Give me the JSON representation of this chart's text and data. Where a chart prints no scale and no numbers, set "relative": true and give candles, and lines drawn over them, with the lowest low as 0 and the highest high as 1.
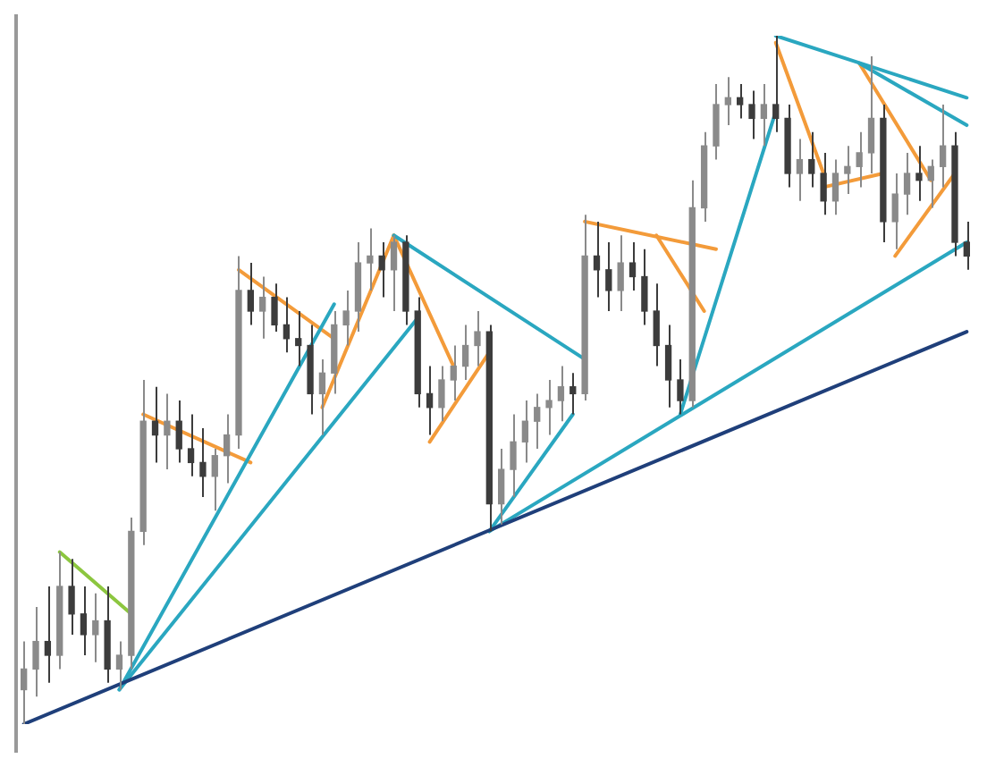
{
  "chart_data": {
    "type": "candlestick",
    "relative": true,
    "categories": [
      null,
      null,
      null,
      null,
      null,
      null,
      null,
      null,
      null,
      null,
      null,
      null,
      null,
      null,
      null,
      null,
      null,
      null,
      null,
      null,
      null,
      null,
      null,
      null,
      null,
      null,
      null,
      null,
      null,
      null,
      null,
      null,
      null,
      null,
      null,
      null,
      null,
      null,
      null,
      null,
      null,
      null,
      null,
      null,
      null,
      null,
      null,
      null,
      null,
      null,
      null,
      null,
      null,
      null,
      null,
      null,
      null,
      null,
      null,
      null,
      null,
      null,
      null,
      null,
      null,
      null,
      null,
      null,
      null,
      null,
      null,
      null,
      null,
      null,
      null,
      null,
      null,
      null,
      null,
      null
    ],
    "colors": [
      "#8a8a8a",
      "#8a8a8a",
      "#3c3c3c",
      "#8a8a8a",
      "#3c3c3c",
      "#3c3c3c",
      "#8a8a8a",
      "#3c3c3c",
      "#8a8a8a",
      "#8a8a8a",
      "#8a8a8a",
      "#3c3c3c",
      "#8a8a8a",
      "#3c3c3c",
      "#3c3c3c",
      "#3c3c3c",
      "#8a8a8a",
      "#8a8a8a",
      "#8a8a8a",
      "#3c3c3c",
      "#8a8a8a",
      "#3c3c3c",
      "#3c3c3c",
      "#3c3c3c",
      "#3c3c3c",
      "#8a8a8a",
      "#8a8a8a",
      "#8a8a8a",
      "#8a8a8a",
      "#8a8a8a",
      "#3c3c3c",
      "#8a8a8a",
      "#3c3c3c",
      "#3c3c3c",
      "#3c3c3c",
      "#8a8a8a",
      "#8a8a8a",
      "#8a8a8a",
      "#8a8a8a",
      "#3c3c3c",
      "#8a8a8a",
      "#8a8a8a",
      "#8a8a8a",
      "#8a8a8a",
      "#8a8a8a",
      "#8a8a8a",
      "#3c3c3c",
      "#8a8a8a",
      "#3c3c3c",
      "#3c3c3c",
      "#8a8a8a",
      "#3c3c3c",
      "#3c3c3c",
      "#3c3c3c",
      "#3c3c3c",
      "#3c3c3c",
      "#8a8a8a",
      "#8a8a8a",
      "#8a8a8a",
      "#8a8a8a",
      "#3c3c3c",
      "#3c3c3c",
      "#8a8a8a",
      "#3c3c3c",
      "#3c3c3c",
      "#8a8a8a",
      "#3c3c3c",
      "#3c3c3c",
      "#8a8a8a",
      "#8a8a8a",
      "#8a8a8a",
      "#8a8a8a",
      "#3c3c3c",
      "#8a8a8a",
      "#8a8a8a",
      "#3c3c3c",
      "#8a8a8a",
      "#8a8a8a",
      "#3c3c3c",
      "#3c3c3c"
    ],
    "ohlc": [
      [
        0.05,
        0.12,
        0,
        0.08
      ],
      [
        0.08,
        0.17,
        0.04,
        0.12
      ],
      [
        0.12,
        0.2,
        0.06,
        0.1
      ],
      [
        0.1,
        0.25,
        0.08,
        0.2
      ],
      [
        0.2,
        0.24,
        0.13,
        0.16
      ],
      [
        0.16,
        0.2,
        0.1,
        0.13
      ],
      [
        0.13,
        0.19,
        0.09,
        0.15
      ],
      [
        0.15,
        0.2,
        0.06,
        0.08
      ],
      [
        0.08,
        0.12,
        0.05,
        0.1
      ],
      [
        0.1,
        0.3,
        0.08,
        0.28
      ],
      [
        0.28,
        0.5,
        0.26,
        0.44
      ],
      [
        0.44,
        0.49,
        0.38,
        0.42
      ],
      [
        0.42,
        0.48,
        0.37,
        0.44
      ],
      [
        0.44,
        0.47,
        0.38,
        0.4
      ],
      [
        0.4,
        0.45,
        0.36,
        0.38
      ],
      [
        0.38,
        0.43,
        0.33,
        0.36
      ],
      [
        0.36,
        0.4,
        0.31,
        0.39
      ],
      [
        0.39,
        0.45,
        0.35,
        0.42
      ],
      [
        0.42,
        0.68,
        0.4,
        0.63
      ],
      [
        0.63,
        0.67,
        0.58,
        0.6
      ],
      [
        0.6,
        0.65,
        0.56,
        0.62
      ],
      [
        0.62,
        0.64,
        0.57,
        0.58
      ],
      [
        0.58,
        0.62,
        0.54,
        0.56
      ],
      [
        0.56,
        0.6,
        0.52,
        0.55
      ],
      [
        0.55,
        0.58,
        0.45,
        0.48
      ],
      [
        0.48,
        0.53,
        0.42,
        0.51
      ],
      [
        0.51,
        0.6,
        0.48,
        0.58
      ],
      [
        0.58,
        0.63,
        0.55,
        0.6
      ],
      [
        0.6,
        0.7,
        0.57,
        0.67
      ],
      [
        0.67,
        0.72,
        0.63,
        0.68
      ],
      [
        0.68,
        0.7,
        0.62,
        0.66
      ],
      [
        0.66,
        0.71,
        0.6,
        0.7
      ],
      [
        0.7,
        0.71,
        0.58,
        0.6
      ],
      [
        0.6,
        0.62,
        0.46,
        0.48
      ],
      [
        0.48,
        0.52,
        0.42,
        0.46
      ],
      [
        0.46,
        0.52,
        0.44,
        0.5
      ],
      [
        0.5,
        0.55,
        0.47,
        0.52
      ],
      [
        0.52,
        0.58,
        0.5,
        0.55
      ],
      [
        0.55,
        0.6,
        0.52,
        0.57
      ],
      [
        0.57,
        0.58,
        0.28,
        0.32
      ],
      [
        0.32,
        0.4,
        0.29,
        0.37
      ],
      [
        0.37,
        0.45,
        0.33,
        0.41
      ],
      [
        0.41,
        0.47,
        0.38,
        0.44
      ],
      [
        0.44,
        0.48,
        0.4,
        0.46
      ],
      [
        0.46,
        0.5,
        0.42,
        0.47
      ],
      [
        0.47,
        0.52,
        0.44,
        0.49
      ],
      [
        0.49,
        0.51,
        0.45,
        0.48
      ],
      [
        0.48,
        0.74,
        0.47,
        0.68
      ],
      [
        0.68,
        0.73,
        0.62,
        0.66
      ],
      [
        0.66,
        0.7,
        0.6,
        0.63
      ],
      [
        0.63,
        0.71,
        0.6,
        0.67
      ],
      [
        0.67,
        0.7,
        0.63,
        0.65
      ],
      [
        0.65,
        0.69,
        0.58,
        0.6
      ],
      [
        0.6,
        0.64,
        0.52,
        0.55
      ],
      [
        0.55,
        0.58,
        0.46,
        0.5
      ],
      [
        0.5,
        0.53,
        0.45,
        0.47
      ],
      [
        0.47,
        0.79,
        0.46,
        0.75
      ],
      [
        0.75,
        0.86,
        0.73,
        0.84
      ],
      [
        0.84,
        0.93,
        0.82,
        0.9
      ],
      [
        0.9,
        0.94,
        0.87,
        0.91
      ],
      [
        0.91,
        0.93,
        0.88,
        0.9
      ],
      [
        0.9,
        0.92,
        0.85,
        0.88
      ],
      [
        0.88,
        0.93,
        0.84,
        0.9
      ],
      [
        0.9,
        1,
        0.86,
        0.88
      ],
      [
        0.88,
        0.9,
        0.78,
        0.8
      ],
      [
        0.8,
        0.85,
        0.76,
        0.82
      ],
      [
        0.82,
        0.86,
        0.78,
        0.8
      ],
      [
        0.8,
        0.83,
        0.74,
        0.76
      ],
      [
        0.76,
        0.82,
        0.74,
        0.8
      ],
      [
        0.8,
        0.84,
        0.77,
        0.81
      ],
      [
        0.81,
        0.86,
        0.78,
        0.83
      ],
      [
        0.83,
        0.97,
        0.8,
        0.88
      ],
      [
        0.88,
        0.9,
        0.7,
        0.73
      ],
      [
        0.73,
        0.8,
        0.69,
        0.77
      ],
      [
        0.77,
        0.83,
        0.74,
        0.8
      ],
      [
        0.8,
        0.84,
        0.76,
        0.79
      ],
      [
        0.79,
        0.82,
        0.75,
        0.81
      ],
      [
        0.81,
        0.9,
        0.78,
        0.84
      ],
      [
        0.84,
        0.86,
        0.68,
        0.7
      ],
      [
        0.7,
        0.73,
        0.66,
        0.68
      ]
    ],
    "series": [
      {
        "type": "line",
        "color": "#1f3f7a",
        "values": [
          0,
          null,
          null,
          null,
          null,
          null,
          null,
          null,
          null,
          null,
          null,
          null,
          null,
          null,
          null,
          null,
          null,
          null,
          null,
          null,
          null,
          null,
          null,
          null,
          null,
          null,
          null,
          null,
          null,
          null,
          null,
          null,
          null,
          null,
          null,
          null,
          null,
          null,
          null,
          null,
          null,
          null,
          null,
          null,
          null,
          null,
          null,
          null,
          null,
          null,
          null,
          null,
          null,
          null,
          null,
          null,
          null,
          null,
          null,
          null,
          null,
          null,
          null,
          null,
          null,
          null,
          null,
          null,
          null,
          null,
          null,
          null,
          null,
          null,
          null,
          null,
          null,
          null,
          null,
          0.57
        ]
      },
      {
        "type": "line",
        "color": "#2aa7c0",
        "values": [
          null,
          null,
          null,
          null,
          null,
          null,
          null,
          null,
          0.05,
          null,
          null,
          null,
          null,
          null,
          null,
          null,
          null,
          null,
          null,
          null,
          null,
          null,
          null,
          null,
          null,
          null,
          0.61,
          null,
          null,
          null,
          null,
          null,
          null,
          null,
          null,
          null,
          null,
          null,
          null,
          null,
          null,
          null,
          null,
          null,
          null,
          null,
          null,
          null,
          null,
          null,
          null,
          null,
          null,
          null,
          null,
          null,
          null,
          null,
          null,
          null,
          null,
          null,
          null,
          null,
          null,
          null,
          null,
          null,
          null,
          null,
          null,
          null,
          null,
          null,
          null,
          null,
          null,
          null,
          null,
          null
        ]
      },
      {
        "type": "line",
        "color": "#2aa7c0",
        "values": [
          null,
          null,
          null,
          null,
          null,
          null,
          null,
          null,
          0.05,
          null,
          null,
          null,
          null,
          null,
          null,
          null,
          null,
          null,
          null,
          null,
          null,
          null,
          null,
          null,
          null,
          null,
          null,
          null,
          null,
          null,
          null,
          null,
          null,
          0.59,
          null,
          null,
          null,
          null,
          null,
          null,
          null,
          null,
          null,
          null,
          null,
          null,
          null,
          null,
          null,
          null,
          null,
          null,
          null,
          null,
          null,
          null,
          null,
          null,
          null,
          null,
          null,
          null,
          null,
          null,
          null,
          null,
          null,
          null,
          null,
          null,
          null,
          null,
          null,
          null,
          null,
          null,
          null,
          null,
          null,
          null
        ]
      },
      {
        "type": "line",
        "color": "#2aa7c0",
        "values": [
          null,
          null,
          null,
          null,
          null,
          null,
          null,
          null,
          null,
          null,
          null,
          null,
          null,
          null,
          null,
          null,
          null,
          null,
          null,
          null,
          null,
          null,
          null,
          null,
          null,
          null,
          null,
          null,
          null,
          null,
          null,
          0.71,
          null,
          null,
          null,
          null,
          null,
          null,
          null,
          null,
          null,
          null,
          null,
          null,
          null,
          null,
          null,
          0.53,
          null,
          null,
          null,
          null,
          null,
          null,
          null,
          null,
          null,
          null,
          null,
          null,
          null,
          null,
          null,
          null,
          null,
          null,
          null,
          null,
          null,
          null,
          null,
          null,
          null,
          null,
          null,
          null,
          null,
          null,
          null,
          null
        ]
      },
      {
        "type": "line",
        "color": "#2aa7c0",
        "values": [
          null,
          null,
          null,
          null,
          null,
          null,
          null,
          null,
          null,
          null,
          null,
          null,
          null,
          null,
          null,
          null,
          null,
          null,
          null,
          null,
          null,
          null,
          null,
          null,
          null,
          null,
          null,
          null,
          null,
          null,
          null,
          null,
          null,
          null,
          null,
          null,
          null,
          null,
          null,
          0.28,
          null,
          null,
          null,
          null,
          null,
          null,
          0.45,
          null,
          null,
          null,
          null,
          null,
          null,
          null,
          null,
          null,
          null,
          null,
          null,
          null,
          null,
          null,
          null,
          null,
          null,
          null,
          null,
          null,
          null,
          null,
          null,
          null,
          null,
          null,
          null,
          null,
          null,
          null,
          null,
          null
        ]
      },
      {
        "type": "line",
        "color": "#2aa7c0",
        "values": [
          null,
          null,
          null,
          null,
          null,
          null,
          null,
          null,
          null,
          null,
          null,
          null,
          null,
          null,
          null,
          null,
          null,
          null,
          null,
          null,
          null,
          null,
          null,
          null,
          null,
          null,
          null,
          null,
          null,
          null,
          null,
          null,
          null,
          null,
          null,
          null,
          null,
          null,
          null,
          0.28,
          null,
          null,
          null,
          null,
          null,
          null,
          null,
          null,
          null,
          null,
          null,
          null,
          null,
          null,
          null,
          null,
          null,
          null,
          null,
          null,
          null,
          null,
          null,
          null,
          null,
          null,
          null,
          null,
          null,
          null,
          null,
          null,
          null,
          null,
          null,
          null,
          null,
          null,
          null,
          0.7
        ]
      },
      {
        "type": "line",
        "color": "#2aa7c0",
        "values": [
          null,
          null,
          null,
          null,
          null,
          null,
          null,
          null,
          null,
          null,
          null,
          null,
          null,
          null,
          null,
          null,
          null,
          null,
          null,
          null,
          null,
          null,
          null,
          null,
          null,
          null,
          null,
          null,
          null,
          null,
          null,
          null,
          null,
          null,
          null,
          null,
          null,
          null,
          null,
          null,
          null,
          null,
          null,
          null,
          null,
          null,
          null,
          null,
          null,
          null,
          null,
          null,
          null,
          null,
          null,
          0.45,
          null,
          null,
          null,
          null,
          null,
          null,
          null,
          0.89,
          null,
          null,
          null,
          null,
          null,
          null,
          null,
          null,
          null,
          null,
          null,
          null,
          null,
          null,
          null,
          null
        ]
      },
      {
        "type": "line",
        "color": "#2aa7c0",
        "values": [
          null,
          null,
          null,
          null,
          null,
          null,
          null,
          null,
          null,
          null,
          null,
          null,
          null,
          null,
          null,
          null,
          null,
          null,
          null,
          null,
          null,
          null,
          null,
          null,
          null,
          null,
          null,
          null,
          null,
          null,
          null,
          null,
          null,
          null,
          null,
          null,
          null,
          null,
          null,
          null,
          null,
          null,
          null,
          null,
          null,
          null,
          null,
          null,
          null,
          null,
          null,
          null,
          null,
          null,
          null,
          null,
          null,
          null,
          null,
          null,
          null,
          null,
          null,
          1,
          null,
          null,
          null,
          null,
          null,
          null,
          null,
          null,
          null,
          null,
          null,
          null,
          null,
          null,
          null,
          0.91
        ]
      },
      {
        "type": "line",
        "color": "#2aa7c0",
        "values": [
          null,
          null,
          null,
          null,
          null,
          null,
          null,
          null,
          null,
          null,
          null,
          null,
          null,
          null,
          null,
          null,
          null,
          null,
          null,
          null,
          null,
          null,
          null,
          null,
          null,
          null,
          null,
          null,
          null,
          null,
          null,
          null,
          null,
          null,
          null,
          null,
          null,
          null,
          null,
          null,
          null,
          null,
          null,
          null,
          null,
          null,
          null,
          null,
          null,
          null,
          null,
          null,
          null,
          null,
          null,
          null,
          null,
          null,
          null,
          null,
          null,
          null,
          null,
          null,
          null,
          null,
          null,
          null,
          null,
          null,
          0.96,
          null,
          null,
          null,
          null,
          null,
          null,
          null,
          null,
          0.87
        ]
      },
      {
        "type": "line",
        "color": "#f39b3a",
        "values": [
          null,
          null,
          null,
          null,
          null,
          null,
          null,
          null,
          null,
          null,
          0.45,
          null,
          null,
          null,
          null,
          null,
          null,
          null,
          null,
          0.38,
          null,
          null,
          null,
          null,
          null,
          null,
          null,
          null,
          null,
          null,
          null,
          null,
          null,
          null,
          null,
          null,
          null,
          null,
          null,
          null,
          null,
          null,
          null,
          null,
          null,
          null,
          null,
          null,
          null,
          null,
          null,
          null,
          null,
          null,
          null,
          null,
          null,
          null,
          null,
          null,
          null,
          null,
          null,
          null,
          null,
          null,
          null,
          null,
          null,
          null,
          null,
          null,
          null,
          null,
          null,
          null,
          null,
          null,
          null,
          null
        ]
      },
      {
        "type": "line",
        "color": "#f39b3a",
        "values": [
          null,
          null,
          null,
          null,
          null,
          null,
          null,
          null,
          null,
          null,
          null,
          null,
          null,
          null,
          null,
          null,
          null,
          null,
          0.66,
          null,
          null,
          null,
          null,
          null,
          null,
          null,
          0.56,
          null,
          null,
          null,
          null,
          null,
          null,
          null,
          null,
          null,
          null,
          null,
          null,
          null,
          null,
          null,
          null,
          null,
          null,
          null,
          null,
          null,
          null,
          null,
          null,
          null,
          null,
          null,
          null,
          null,
          null,
          null,
          null,
          null,
          null,
          null,
          null,
          null,
          null,
          null,
          null,
          null,
          null,
          null,
          null,
          null,
          null,
          null,
          null,
          null,
          null,
          null,
          null,
          null
        ]
      },
      {
        "type": "line",
        "color": "#f39b3a",
        "values": [
          null,
          null,
          null,
          null,
          null,
          null,
          null,
          null,
          null,
          null,
          null,
          null,
          null,
          null,
          null,
          null,
          null,
          null,
          null,
          null,
          null,
          null,
          null,
          null,
          null,
          0.46,
          null,
          null,
          null,
          null,
          null,
          0.71,
          null,
          null,
          null,
          null,
          null,
          null,
          null,
          null,
          null,
          null,
          null,
          null,
          null,
          null,
          null,
          null,
          null,
          null,
          null,
          null,
          null,
          null,
          null,
          null,
          null,
          null,
          null,
          null,
          null,
          null,
          null,
          null,
          null,
          null,
          null,
          null,
          null,
          null,
          null,
          null,
          null,
          null,
          null,
          null,
          null,
          null,
          null,
          null
        ]
      },
      {
        "type": "line",
        "color": "#f39b3a",
        "values": [
          null,
          null,
          null,
          null,
          null,
          null,
          null,
          null,
          null,
          null,
          null,
          null,
          null,
          null,
          null,
          null,
          null,
          null,
          null,
          null,
          null,
          null,
          null,
          null,
          null,
          null,
          null,
          null,
          null,
          null,
          null,
          0.71,
          null,
          null,
          null,
          null,
          0.52,
          null,
          null,
          null,
          null,
          null,
          null,
          null,
          null,
          null,
          null,
          null,
          null,
          null,
          null,
          null,
          null,
          null,
          null,
          null,
          null,
          null,
          null,
          null,
          null,
          null,
          null,
          null,
          null,
          null,
          null,
          null,
          null,
          null,
          null,
          null,
          null,
          null,
          null,
          null,
          null,
          null,
          null,
          null
        ]
      },
      {
        "type": "line",
        "color": "#f39b3a",
        "values": [
          null,
          null,
          null,
          null,
          null,
          null,
          null,
          null,
          null,
          null,
          null,
          null,
          null,
          null,
          null,
          null,
          null,
          null,
          null,
          null,
          null,
          null,
          null,
          null,
          null,
          null,
          null,
          null,
          null,
          null,
          null,
          null,
          null,
          null,
          0.41,
          null,
          null,
          null,
          null,
          0.54,
          null,
          null,
          null,
          null,
          null,
          null,
          null,
          null,
          null,
          null,
          null,
          null,
          null,
          null,
          null,
          null,
          null,
          null,
          null,
          null,
          null,
          null,
          null,
          null,
          null,
          null,
          null,
          null,
          null,
          null,
          null,
          null,
          null,
          null,
          null,
          null,
          null,
          null,
          null,
          null
        ]
      },
      {
        "type": "line",
        "color": "#f39b3a",
        "values": [
          null,
          null,
          null,
          null,
          null,
          null,
          null,
          null,
          null,
          null,
          null,
          null,
          null,
          null,
          null,
          null,
          null,
          null,
          null,
          null,
          null,
          null,
          null,
          null,
          null,
          null,
          null,
          null,
          null,
          null,
          null,
          null,
          null,
          null,
          null,
          null,
          null,
          null,
          null,
          null,
          null,
          null,
          null,
          null,
          null,
          null,
          null,
          0.73,
          null,
          null,
          null,
          null,
          null,
          null,
          null,
          null,
          null,
          null,
          0.69,
          null,
          null,
          null,
          null,
          null,
          null,
          null,
          null,
          null,
          null,
          null,
          null,
          null,
          null,
          null,
          null,
          null,
          null,
          null,
          null,
          null
        ]
      },
      {
        "type": "line",
        "color": "#f39b3a",
        "values": [
          null,
          null,
          null,
          null,
          null,
          null,
          null,
          null,
          null,
          null,
          null,
          null,
          null,
          null,
          null,
          null,
          null,
          null,
          null,
          null,
          null,
          null,
          null,
          null,
          null,
          null,
          null,
          null,
          null,
          null,
          null,
          null,
          null,
          null,
          null,
          null,
          null,
          null,
          null,
          null,
          null,
          null,
          null,
          null,
          null,
          null,
          null,
          null,
          null,
          null,
          null,
          null,
          null,
          0.71,
          null,
          null,
          null,
          0.6,
          null,
          null,
          null,
          null,
          null,
          null,
          null,
          null,
          null,
          null,
          null,
          null,
          null,
          null,
          null,
          null,
          null,
          null,
          null,
          null,
          null,
          null
        ]
      },
      {
        "type": "line",
        "color": "#f39b3a",
        "values": [
          null,
          null,
          null,
          null,
          null,
          null,
          null,
          null,
          null,
          null,
          null,
          null,
          null,
          null,
          null,
          null,
          null,
          null,
          null,
          null,
          null,
          null,
          null,
          null,
          null,
          null,
          null,
          null,
          null,
          null,
          null,
          null,
          null,
          null,
          null,
          null,
          null,
          null,
          null,
          null,
          null,
          null,
          null,
          null,
          null,
          null,
          null,
          null,
          null,
          null,
          null,
          null,
          null,
          null,
          null,
          null,
          null,
          null,
          null,
          null,
          null,
          null,
          null,
          0.99,
          null,
          null,
          null,
          0.8,
          null,
          null,
          null,
          null,
          null,
          null,
          null,
          null,
          null,
          null,
          null,
          null
        ]
      },
      {
        "type": "line",
        "color": "#f39b3a",
        "values": [
          null,
          null,
          null,
          null,
          null,
          null,
          null,
          null,
          null,
          null,
          null,
          null,
          null,
          null,
          null,
          null,
          null,
          null,
          null,
          null,
          null,
          null,
          null,
          null,
          null,
          null,
          null,
          null,
          null,
          null,
          null,
          null,
          null,
          null,
          null,
          null,
          null,
          null,
          null,
          null,
          null,
          null,
          null,
          null,
          null,
          null,
          null,
          null,
          null,
          null,
          null,
          null,
          null,
          null,
          null,
          null,
          null,
          null,
          null,
          null,
          null,
          null,
          null,
          null,
          null,
          null,
          null,
          0.78,
          null,
          null,
          null,
          null,
          0.8,
          null,
          null,
          null,
          null,
          null,
          null,
          null
        ]
      },
      {
        "type": "line",
        "color": "#f39b3a",
        "values": [
          null,
          null,
          null,
          null,
          null,
          null,
          null,
          null,
          null,
          null,
          null,
          null,
          null,
          null,
          null,
          null,
          null,
          null,
          null,
          null,
          null,
          null,
          null,
          null,
          null,
          null,
          null,
          null,
          null,
          null,
          null,
          null,
          null,
          null,
          null,
          null,
          null,
          null,
          null,
          null,
          null,
          null,
          null,
          null,
          null,
          null,
          null,
          null,
          null,
          null,
          null,
          null,
          null,
          null,
          null,
          null,
          null,
          null,
          null,
          null,
          null,
          null,
          null,
          null,
          null,
          null,
          null,
          null,
          null,
          null,
          0.96,
          null,
          null,
          null,
          null,
          null,
          0.79,
          null,
          null,
          null
        ]
      },
      {
        "type": "line",
        "color": "#f39b3a",
        "values": [
          null,
          null,
          null,
          null,
          null,
          null,
          null,
          null,
          null,
          null,
          null,
          null,
          null,
          null,
          null,
          null,
          null,
          null,
          null,
          null,
          null,
          null,
          null,
          null,
          null,
          null,
          null,
          null,
          null,
          null,
          null,
          null,
          null,
          null,
          null,
          null,
          null,
          null,
          null,
          null,
          null,
          null,
          null,
          null,
          null,
          null,
          null,
          null,
          null,
          null,
          null,
          null,
          null,
          null,
          null,
          null,
          null,
          null,
          null,
          null,
          null,
          null,
          null,
          null,
          null,
          null,
          null,
          null,
          null,
          null,
          null,
          null,
          null,
          0.68,
          null,
          null,
          null,
          null,
          0.8,
          null
        ]
      },
      {
        "type": "line",
        "color": "#8cc63f",
        "values": [
          null,
          null,
          null,
          0.25,
          null,
          null,
          null,
          null,
          null,
          0.16,
          null,
          null,
          null,
          null,
          null,
          null,
          null,
          null,
          null,
          null,
          null,
          null,
          null,
          null,
          null,
          null,
          null,
          null,
          null,
          null,
          null,
          null,
          null,
          null,
          null,
          null,
          null,
          null,
          null,
          null,
          null,
          null,
          null,
          null,
          null,
          null,
          null,
          null,
          null,
          null,
          null,
          null,
          null,
          null,
          null,
          null,
          null,
          null,
          null,
          null,
          null,
          null,
          null,
          null,
          null,
          null,
          null,
          null,
          null,
          null,
          null,
          null,
          null,
          null,
          null,
          null,
          null,
          null,
          null,
          null
        ]
      }
    ]
  }
}
